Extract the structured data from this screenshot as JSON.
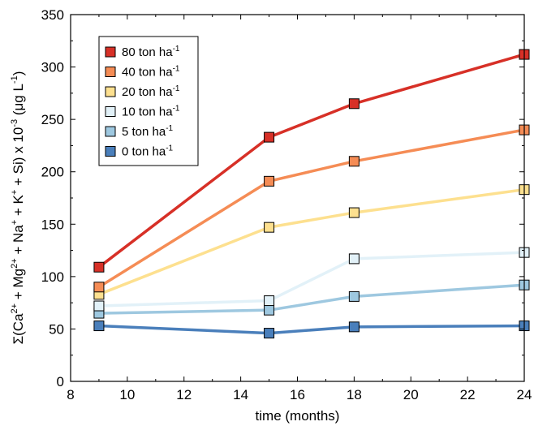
{
  "chart_data": {
    "type": "line",
    "xlabel": "time (months)",
    "ylabel": {
      "prefix": "Σ(Ca",
      "parts": [
        {
          "t": "Σ(Ca",
          "s": ""
        },
        {
          "t": "2+",
          "s": "sup"
        },
        {
          "t": " + Mg",
          "s": ""
        },
        {
          "t": "2+",
          "s": "sup"
        },
        {
          "t": " + Na",
          "s": ""
        },
        {
          "t": "+",
          "s": "sup"
        },
        {
          "t": " + K",
          "s": ""
        },
        {
          "t": "+",
          "s": "sup"
        },
        {
          "t": " + Si) x 10",
          "s": ""
        },
        {
          "t": "-3",
          "s": "sup"
        },
        {
          "t": " (μg L",
          "s": ""
        },
        {
          "t": "-1",
          "s": "sup"
        },
        {
          "t": ")",
          "s": ""
        }
      ]
    },
    "xlim": [
      8,
      24
    ],
    "ylim": [
      0,
      350
    ],
    "xticks": [
      8,
      10,
      12,
      14,
      16,
      18,
      20,
      22,
      24
    ],
    "yticks": [
      0,
      50,
      100,
      150,
      200,
      250,
      300,
      350
    ],
    "x": [
      9,
      15,
      18,
      24
    ],
    "legend_position": "top-left",
    "series": [
      {
        "name": "80 ton ha",
        "unit_sup": "-1",
        "color": "#d73027",
        "values": [
          109,
          233,
          265,
          312
        ]
      },
      {
        "name": "40 ton ha",
        "unit_sup": "-1",
        "color": "#f58c55",
        "values": [
          90,
          191,
          210,
          240
        ]
      },
      {
        "name": "20 ton ha",
        "unit_sup": "-1",
        "color": "#fde08f",
        "values": [
          83,
          147,
          161,
          183
        ]
      },
      {
        "name": "10 ton ha",
        "unit_sup": "-1",
        "color": "#e2f1f8",
        "values": [
          72,
          77,
          117,
          123
        ]
      },
      {
        "name": "5 ton ha",
        "unit_sup": "-1",
        "color": "#9ec8e0",
        "values": [
          65,
          68,
          81,
          92
        ]
      },
      {
        "name": "0 ton ha",
        "unit_sup": "-1",
        "color": "#4a7fbb",
        "values": [
          53,
          46,
          52,
          53
        ]
      }
    ]
  }
}
